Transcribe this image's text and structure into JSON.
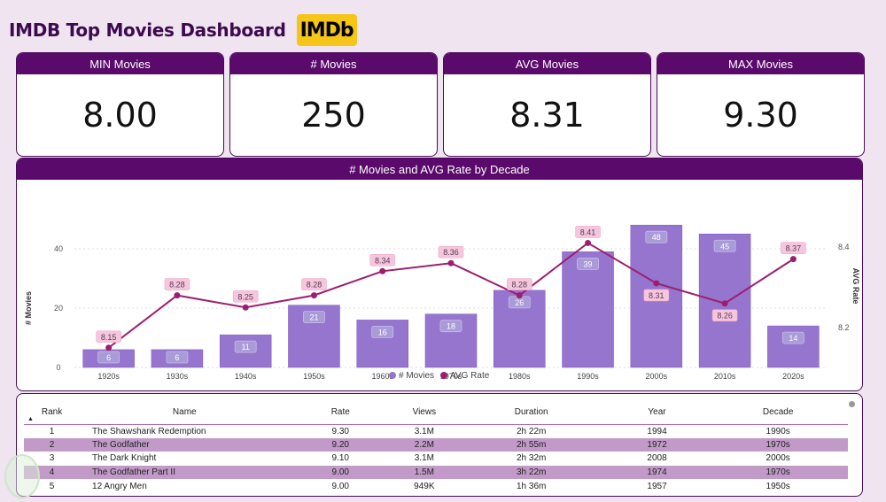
{
  "header": {
    "title": "IMDB Top Movies Dashboard",
    "logo_text": "IMDb"
  },
  "kpis": [
    {
      "label": "MIN Movies",
      "value": "8.00"
    },
    {
      "label": "# Movies",
      "value": "250"
    },
    {
      "label": "AVG Movies",
      "value": "8.31"
    },
    {
      "label": "MAX Movies",
      "value": "9.30"
    }
  ],
  "chart": {
    "title": "# Movies and AVG Rate by Decade",
    "y_left_label": "# Movies",
    "y_right_label": "AVG Rate",
    "legend": [
      "# Movies",
      "AVG Rate"
    ],
    "bar_color": "#9575cd",
    "line_color": "#9c1e6e"
  },
  "chart_data": {
    "type": "bar",
    "categories": [
      "1920s",
      "1930s",
      "1940s",
      "1950s",
      "1960s",
      "1970s",
      "1980s",
      "1990s",
      "2000s",
      "2010s",
      "2020s"
    ],
    "series": [
      {
        "name": "# Movies",
        "type": "bar",
        "axis": "left",
        "values": [
          6,
          6,
          11,
          21,
          16,
          18,
          26,
          39,
          48,
          45,
          14
        ]
      },
      {
        "name": "AVG Rate",
        "type": "line",
        "axis": "right",
        "values": [
          8.15,
          8.28,
          8.25,
          8.28,
          8.34,
          8.36,
          8.28,
          8.41,
          8.31,
          8.26,
          8.37
        ]
      }
    ],
    "y_left_ticks": [
      0,
      20,
      40
    ],
    "y_right_ticks": [
      8.2,
      8.4
    ],
    "xlabel": "",
    "ylabel": "# Movies",
    "ylabel_right": "AVG Rate",
    "legend_position": "bottom"
  },
  "table": {
    "columns": [
      "Rank",
      "Name",
      "Rate",
      "Views",
      "Duration",
      "Year",
      "Decade"
    ],
    "rows": [
      [
        "1",
        "The Shawshank Redemption",
        "9.30",
        "3.1M",
        "2h 22m",
        "1994",
        "1990s"
      ],
      [
        "2",
        "The Godfather",
        "9.20",
        "2.2M",
        "2h 55m",
        "1972",
        "1970s"
      ],
      [
        "3",
        "The Dark Knight",
        "9.10",
        "3.1M",
        "2h 32m",
        "2008",
        "2000s"
      ],
      [
        "4",
        "The Godfather Part II",
        "9.00",
        "1.5M",
        "3h 22m",
        "1974",
        "1970s"
      ],
      [
        "5",
        "12 Angry Men",
        "9.00",
        "949K",
        "1h 36m",
        "1957",
        "1950s"
      ]
    ],
    "sort_indicator": "▲"
  }
}
